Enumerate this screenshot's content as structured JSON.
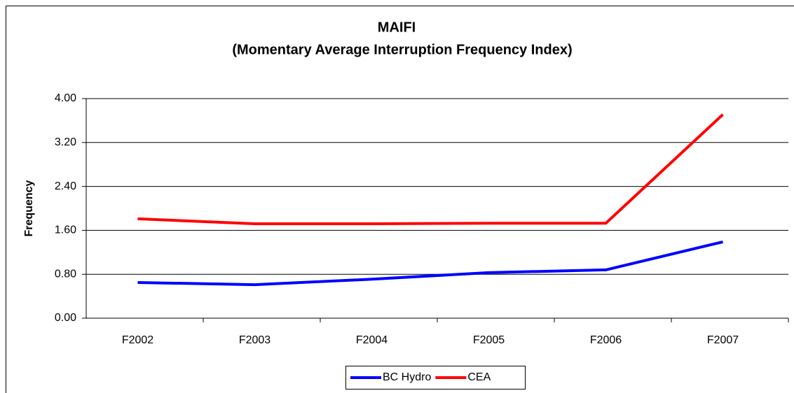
{
  "chart_data": {
    "type": "line",
    "title": "MAIFI",
    "subtitle": "(Momentary Average Interruption Frequency Index)",
    "y_label": "Frequency",
    "categories": [
      "F2002",
      "F2003",
      "F2004",
      "F2005",
      "F2006",
      "F2007"
    ],
    "series": [
      {
        "name": "BC Hydro",
        "color": "#0000ff",
        "values": [
          0.65,
          0.61,
          0.71,
          0.83,
          0.88,
          1.39
        ]
      },
      {
        "name": "CEA",
        "color": "#ff0000",
        "values": [
          1.81,
          1.72,
          1.72,
          1.73,
          1.73,
          3.71
        ]
      }
    ],
    "ylim": [
      0,
      4
    ],
    "yticks": [
      {
        "value": 0,
        "label": "0.00"
      },
      {
        "value": 0.8,
        "label": "0.80"
      },
      {
        "value": 1.6,
        "label": "1.60"
      },
      {
        "value": 2.4,
        "label": "2.40"
      },
      {
        "value": 3.2,
        "label": "3.20"
      },
      {
        "value": 4,
        "label": "4.00"
      }
    ],
    "grid": true,
    "legend": "bottom"
  }
}
